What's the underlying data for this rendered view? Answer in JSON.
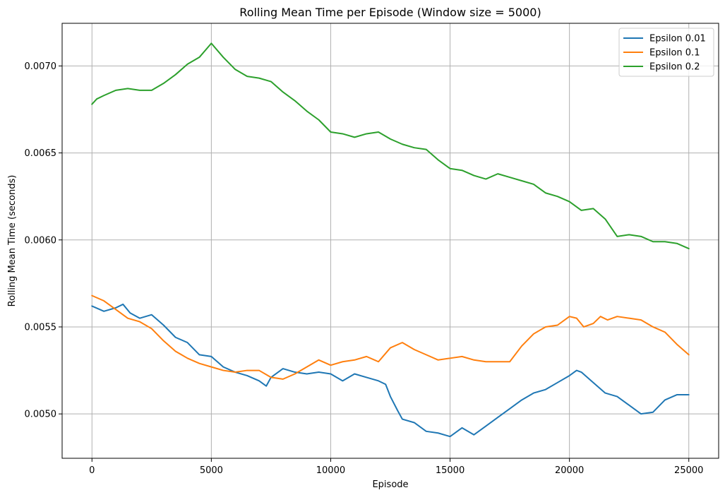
{
  "chart_data": {
    "type": "line",
    "title": "Rolling Mean Time per Episode (Window size = 5000)",
    "xlabel": "Episode",
    "ylabel": "Rolling Mean Time (seconds)",
    "xlim": [
      -1250,
      26250
    ],
    "ylim": [
      0.004745,
      0.007245
    ],
    "xticks": [
      0,
      5000,
      10000,
      15000,
      20000,
      25000
    ],
    "xtick_labels": [
      "0",
      "5000",
      "10000",
      "15000",
      "20000",
      "25000"
    ],
    "yticks": [
      0.005,
      0.0055,
      0.006,
      0.0065,
      0.007
    ],
    "ytick_labels": [
      "0.0050",
      "0.0055",
      "0.0060",
      "0.0065",
      "0.0070"
    ],
    "grid": true,
    "legend_position": "top-right",
    "series": [
      {
        "name": "Epsilon 0.01",
        "color": "#1f77b4",
        "x": [
          0,
          500,
          1000,
          1300,
          1600,
          2000,
          2500,
          3000,
          3500,
          4000,
          4500,
          5000,
          5500,
          6000,
          6500,
          7000,
          7300,
          7500,
          8000,
          8500,
          9000,
          9500,
          10000,
          10500,
          11000,
          11500,
          12000,
          12300,
          12500,
          12800,
          13000,
          13500,
          14000,
          14500,
          15000,
          15500,
          16000,
          16500,
          17000,
          17500,
          18000,
          18500,
          19000,
          19500,
          20000,
          20300,
          20500,
          21000,
          21500,
          22000,
          22500,
          23000,
          23500,
          24000,
          24500,
          25000
        ],
        "values": [
          0.00562,
          0.00559,
          0.00561,
          0.00563,
          0.00558,
          0.00555,
          0.00557,
          0.00551,
          0.00544,
          0.00541,
          0.00534,
          0.00533,
          0.00527,
          0.00524,
          0.00522,
          0.00519,
          0.00516,
          0.00521,
          0.00526,
          0.00524,
          0.00523,
          0.00524,
          0.00523,
          0.00519,
          0.00523,
          0.00521,
          0.00519,
          0.00517,
          0.0051,
          0.00502,
          0.00497,
          0.00495,
          0.0049,
          0.00489,
          0.00487,
          0.00492,
          0.00488,
          0.00493,
          0.00498,
          0.00503,
          0.00508,
          0.00512,
          0.00514,
          0.00518,
          0.00522,
          0.00525,
          0.00524,
          0.00518,
          0.00512,
          0.0051,
          0.00505,
          0.005,
          0.00501,
          0.00508,
          0.00511,
          0.00511
        ]
      },
      {
        "name": "Epsilon 0.1",
        "color": "#ff7f0e",
        "x": [
          0,
          500,
          1000,
          1500,
          2000,
          2500,
          3000,
          3500,
          4000,
          4500,
          5000,
          5500,
          6000,
          6500,
          7000,
          7500,
          8000,
          8500,
          9000,
          9500,
          10000,
          10500,
          11000,
          11500,
          12000,
          12500,
          13000,
          13500,
          14000,
          14500,
          15000,
          15500,
          16000,
          16500,
          17000,
          17500,
          18000,
          18500,
          19000,
          19500,
          20000,
          20300,
          20600,
          21000,
          21300,
          21600,
          22000,
          22500,
          23000,
          23500,
          24000,
          24500,
          25000
        ],
        "values": [
          0.00568,
          0.00565,
          0.0056,
          0.00555,
          0.00553,
          0.00549,
          0.00542,
          0.00536,
          0.00532,
          0.00529,
          0.00527,
          0.00525,
          0.00524,
          0.00525,
          0.00525,
          0.00521,
          0.0052,
          0.00523,
          0.00527,
          0.00531,
          0.00528,
          0.0053,
          0.00531,
          0.00533,
          0.0053,
          0.00538,
          0.00541,
          0.00537,
          0.00534,
          0.00531,
          0.00532,
          0.00533,
          0.00531,
          0.0053,
          0.0053,
          0.0053,
          0.00539,
          0.00546,
          0.0055,
          0.00551,
          0.00556,
          0.00555,
          0.0055,
          0.00552,
          0.00556,
          0.00554,
          0.00556,
          0.00555,
          0.00554,
          0.0055,
          0.00547,
          0.0054,
          0.00534
        ]
      },
      {
        "name": "Epsilon 0.2",
        "color": "#2ca02c",
        "x": [
          0,
          200,
          500,
          1000,
          1500,
          2000,
          2500,
          3000,
          3500,
          4000,
          4500,
          5000,
          5500,
          6000,
          6500,
          7000,
          7500,
          8000,
          8500,
          9000,
          9500,
          10000,
          10500,
          11000,
          11500,
          12000,
          12500,
          13000,
          13500,
          14000,
          14500,
          15000,
          15500,
          16000,
          16500,
          17000,
          17500,
          18000,
          18500,
          19000,
          19500,
          20000,
          20500,
          21000,
          21500,
          22000,
          22500,
          23000,
          23500,
          24000,
          24500,
          25000
        ],
        "values": [
          0.00678,
          0.00681,
          0.00683,
          0.00686,
          0.00687,
          0.00686,
          0.00686,
          0.0069,
          0.00695,
          0.00701,
          0.00705,
          0.00713,
          0.00705,
          0.00698,
          0.00694,
          0.00693,
          0.00691,
          0.00685,
          0.0068,
          0.00674,
          0.00669,
          0.00662,
          0.00661,
          0.00659,
          0.00661,
          0.00662,
          0.00658,
          0.00655,
          0.00653,
          0.00652,
          0.00646,
          0.00641,
          0.0064,
          0.00637,
          0.00635,
          0.00638,
          0.00636,
          0.00634,
          0.00632,
          0.00627,
          0.00625,
          0.00622,
          0.00617,
          0.00618,
          0.00612,
          0.00602,
          0.00603,
          0.00602,
          0.00599,
          0.00599,
          0.00598,
          0.00595
        ]
      }
    ]
  }
}
